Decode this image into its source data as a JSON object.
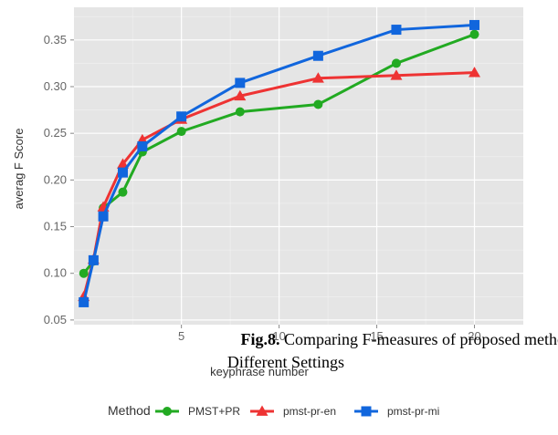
{
  "chart_data": {
    "type": "line",
    "xlabel": "keyphrase number",
    "ylabel": "averag F Score",
    "xlim": [
      -0.5,
      22.5
    ],
    "ylim": [
      0.045,
      0.385
    ],
    "x_ticks": [
      5,
      10,
      15,
      20
    ],
    "y_ticks": [
      0.05,
      0.1,
      0.15,
      0.2,
      0.25,
      0.3,
      0.35
    ],
    "grid": true,
    "legend_title": "Method",
    "legend_position": "bottom",
    "series": [
      {
        "name": "PMST+PR",
        "color": "#22aa22",
        "marker": "circle",
        "x": [
          0,
          0.5,
          1,
          2,
          3,
          5,
          8,
          12,
          16,
          20
        ],
        "y": [
          0.1,
          0.113,
          0.17,
          0.187,
          0.23,
          0.252,
          0.273,
          0.281,
          0.325,
          0.356
        ]
      },
      {
        "name": "pmst-pr-en",
        "color": "#ee3333",
        "marker": "triangle",
        "x": [
          0,
          0.5,
          1,
          2,
          3,
          5,
          8,
          12,
          16,
          20
        ],
        "y": [
          0.075,
          0.115,
          0.171,
          0.217,
          0.243,
          0.265,
          0.29,
          0.309,
          0.312,
          0.315
        ]
      },
      {
        "name": "pmst-pr-mi",
        "color": "#1166dd",
        "marker": "square",
        "x": [
          0,
          0.5,
          1,
          2,
          3,
          5,
          8,
          12,
          16,
          20
        ],
        "y": [
          0.069,
          0.114,
          0.161,
          0.208,
          0.236,
          0.268,
          0.304,
          0.333,
          0.361,
          0.366
        ]
      }
    ]
  },
  "caption": {
    "label": "Fig.8.",
    "line1": " Comparing F-measures of proposed method with",
    "line2": "Different Settings"
  }
}
